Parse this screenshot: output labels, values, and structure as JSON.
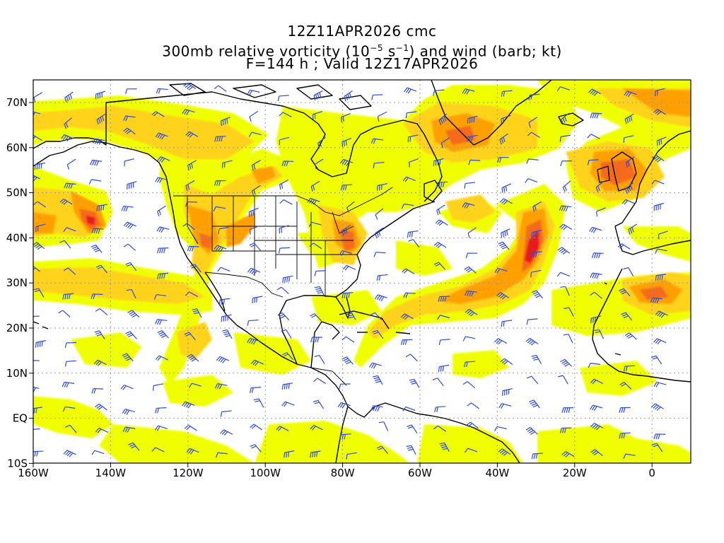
{
  "header": {
    "line1": "12Z11APR2026 cmc",
    "line2_pre": "300mb relative vorticity (10",
    "line2_exp1": "−5",
    "line2_mid": " s",
    "line2_exp2": "−1",
    "line2_post": ") and wind (barb; kt)",
    "line3": "F=144 h ; Valid 12Z17APR2026"
  },
  "axes": {
    "lat_labels": [
      "70N",
      "60N",
      "50N",
      "40N",
      "30N",
      "20N",
      "10N",
      "EQ",
      "10S"
    ],
    "lon_labels": [
      "160W",
      "140W",
      "120W",
      "100W",
      "80W",
      "60W",
      "40W",
      "20W",
      "0"
    ]
  },
  "colors": {
    "vort_level1": "#f0ff00",
    "vort_level2": "#ffd21e",
    "vort_level3": "#ffa000",
    "vort_level4": "#f56a1e",
    "vort_level5": "#e61e1e",
    "barbs": "#2a4be6",
    "coast": "#000000",
    "grid": "#999999"
  }
}
